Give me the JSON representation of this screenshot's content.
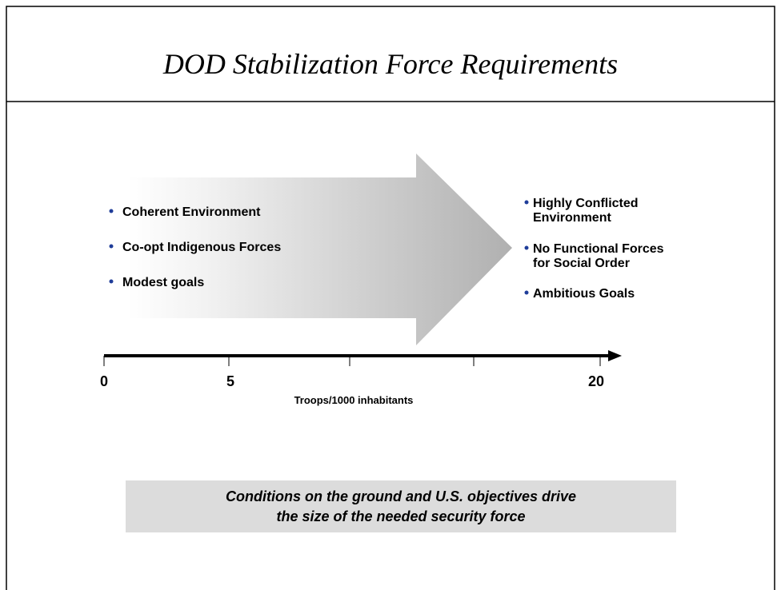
{
  "title": "DOD Stabilization Force Requirements",
  "left_bullets": [
    "Coherent Environment",
    "Co-opt Indigenous Forces",
    "Modest goals"
  ],
  "right_bullets": [
    [
      "Highly Conflicted",
      "Environment"
    ],
    [
      "No Functional Forces",
      "for Social Order"
    ],
    [
      "Ambitious Goals"
    ]
  ],
  "axis": {
    "tick_labels": [
      "0",
      "5",
      "20"
    ],
    "label": "Troops/1000 inhabitants"
  },
  "callout": [
    "Conditions on the ground and U.S. objectives drive",
    "the size of the needed security force"
  ]
}
